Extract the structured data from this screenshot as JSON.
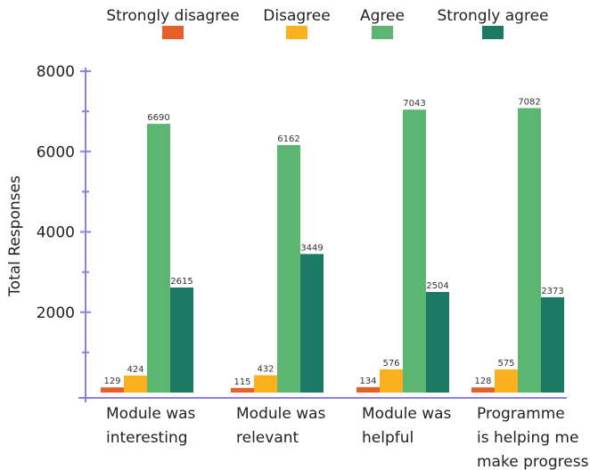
{
  "chart_data": {
    "type": "bar",
    "title": "",
    "xlabel": "",
    "ylabel": "Total Responses",
    "ylim": [
      0,
      8000
    ],
    "yticks": [
      2000,
      4000,
      6000,
      8000
    ],
    "legend_position": "top",
    "categories": [
      [
        "Module was",
        "interesting"
      ],
      [
        "Module was",
        "relevant"
      ],
      [
        "Module was",
        "helpful"
      ],
      [
        "Programme",
        "is helping me",
        "make progress"
      ]
    ],
    "series": [
      {
        "name": "Strongly disagree",
        "color": "#e3602b",
        "values": [
          129,
          115,
          134,
          128
        ]
      },
      {
        "name": "Disagree",
        "color": "#fbb11e",
        "values": [
          424,
          432,
          576,
          575
        ]
      },
      {
        "name": "Agree",
        "color": "#5bb672",
        "values": [
          6690,
          6162,
          7043,
          7082
        ]
      },
      {
        "name": "Strongly agree",
        "color": "#1a7a66",
        "values": [
          2615,
          3449,
          2504,
          2373
        ]
      }
    ],
    "axis_color": "#8f7ee6"
  }
}
